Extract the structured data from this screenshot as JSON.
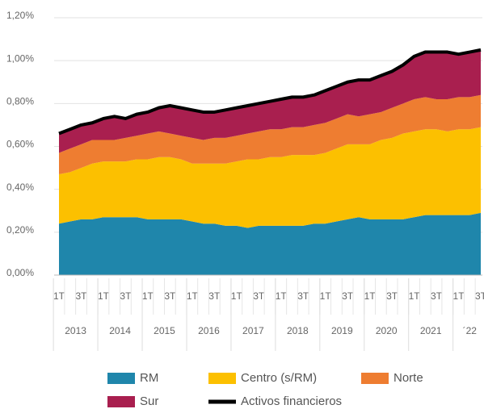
{
  "chart_data": {
    "type": "area",
    "stacked": true,
    "categories": [
      "1T",
      null,
      "3T",
      null,
      "1T",
      null,
      "3T",
      null,
      "1T",
      null,
      "3T",
      null,
      "1T",
      null,
      "3T",
      null,
      "1T",
      null,
      "3T",
      null,
      "1T",
      null,
      "3T",
      null,
      "1T",
      null,
      "3T",
      null,
      "1T",
      null,
      "3T",
      null,
      "1T",
      null,
      "3T",
      null,
      "1T",
      null,
      "3T"
    ],
    "years": [
      "2013",
      "2014",
      "2015",
      "2016",
      "2017",
      "2018",
      "2019",
      "2020",
      "2021",
      "´22"
    ],
    "ylim": [
      0,
      1.2
    ],
    "yticks": [
      {
        "value": 0,
        "label": "0,00%"
      },
      {
        "value": 0.2,
        "label": "0,20%"
      },
      {
        "value": 0.4,
        "label": "0,40%"
      },
      {
        "value": 0.6,
        "label": "0,60%"
      },
      {
        "value": 0.8,
        "label": "0,80%"
      },
      {
        "value": 1.0,
        "label": "1,00%"
      },
      {
        "value": 1.2,
        "label": "1,20%"
      }
    ],
    "grid": true,
    "series": [
      {
        "name": "RM",
        "color": "#1f86ab",
        "values": [
          0.24,
          0.25,
          0.26,
          0.26,
          0.27,
          0.27,
          0.27,
          0.27,
          0.26,
          0.26,
          0.26,
          0.26,
          0.25,
          0.24,
          0.24,
          0.23,
          0.23,
          0.22,
          0.23,
          0.23,
          0.23,
          0.23,
          0.23,
          0.24,
          0.24,
          0.25,
          0.26,
          0.27,
          0.26,
          0.26,
          0.26,
          0.26,
          0.27,
          0.28,
          0.28,
          0.28,
          0.28,
          0.28,
          0.29
        ]
      },
      {
        "name": "Centro (s/RM)",
        "color": "#fcc000",
        "values": [
          0.23,
          0.23,
          0.24,
          0.26,
          0.26,
          0.26,
          0.26,
          0.27,
          0.28,
          0.29,
          0.29,
          0.28,
          0.27,
          0.28,
          0.28,
          0.29,
          0.3,
          0.32,
          0.31,
          0.32,
          0.32,
          0.33,
          0.33,
          0.32,
          0.33,
          0.34,
          0.35,
          0.34,
          0.35,
          0.37,
          0.38,
          0.4,
          0.4,
          0.4,
          0.4,
          0.39,
          0.4,
          0.4,
          0.4
        ]
      },
      {
        "name": "Norte",
        "color": "#ee7d31",
        "values": [
          0.1,
          0.11,
          0.11,
          0.11,
          0.1,
          0.1,
          0.11,
          0.11,
          0.12,
          0.12,
          0.11,
          0.11,
          0.12,
          0.11,
          0.12,
          0.12,
          0.12,
          0.12,
          0.13,
          0.13,
          0.13,
          0.13,
          0.13,
          0.14,
          0.14,
          0.14,
          0.14,
          0.13,
          0.14,
          0.13,
          0.14,
          0.14,
          0.15,
          0.15,
          0.14,
          0.15,
          0.15,
          0.15,
          0.15
        ]
      },
      {
        "name": "Sur",
        "color": "#a91f4f",
        "values": [
          0.09,
          0.09,
          0.09,
          0.08,
          0.1,
          0.11,
          0.09,
          0.1,
          0.1,
          0.11,
          0.13,
          0.13,
          0.13,
          0.13,
          0.12,
          0.13,
          0.13,
          0.13,
          0.13,
          0.13,
          0.14,
          0.14,
          0.14,
          0.14,
          0.15,
          0.15,
          0.15,
          0.17,
          0.16,
          0.17,
          0.17,
          0.18,
          0.2,
          0.21,
          0.22,
          0.22,
          0.2,
          0.21,
          0.21
        ]
      },
      {
        "name": "Activos financieros",
        "type": "line",
        "color": "#000000",
        "values": [
          0.66,
          0.68,
          0.7,
          0.71,
          0.73,
          0.74,
          0.73,
          0.75,
          0.76,
          0.78,
          0.79,
          0.78,
          0.77,
          0.76,
          0.76,
          0.77,
          0.78,
          0.79,
          0.8,
          0.81,
          0.82,
          0.83,
          0.83,
          0.84,
          0.86,
          0.88,
          0.9,
          0.91,
          0.91,
          0.93,
          0.95,
          0.98,
          1.02,
          1.04,
          1.04,
          1.04,
          1.03,
          1.04,
          1.05
        ]
      }
    ]
  }
}
